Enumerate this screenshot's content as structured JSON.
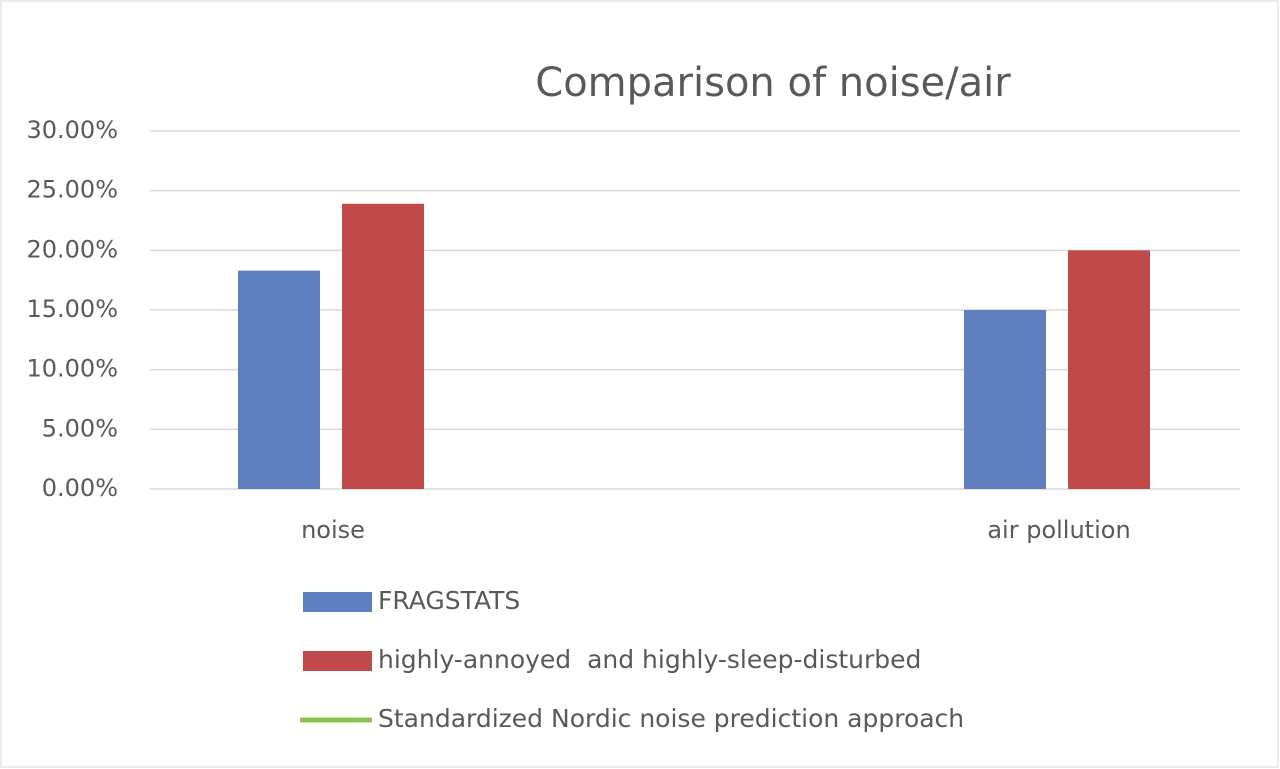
{
  "chart_data": {
    "type": "bar",
    "title": "Comparison of noise/air",
    "categories": [
      "noise",
      "air pollution"
    ],
    "series": [
      {
        "name": "FRAGSTATS",
        "color": "#5f7fbf",
        "values": [
          18.3,
          15.0
        ]
      },
      {
        "name": "highly-annoyed  and highly-sleep-disturbed",
        "color": "#c0494a",
        "values": [
          23.9,
          20.0
        ]
      },
      {
        "name": "Standardized Nordic noise prediction approach",
        "color": "#8bc34a",
        "mark": "line",
        "values": [
          null,
          null
        ]
      }
    ],
    "ylim": [
      0,
      30
    ],
    "yticks": [
      {
        "value": 0,
        "label": "0.00%"
      },
      {
        "value": 5,
        "label": "5.00%"
      },
      {
        "value": 10,
        "label": "10.00%"
      },
      {
        "value": 15,
        "label": "15.00%"
      },
      {
        "value": 20,
        "label": "20.00%"
      },
      {
        "value": 25,
        "label": "25.00%"
      },
      {
        "value": 30,
        "label": "30.00%"
      }
    ],
    "grid": true,
    "legend": "bottom"
  }
}
